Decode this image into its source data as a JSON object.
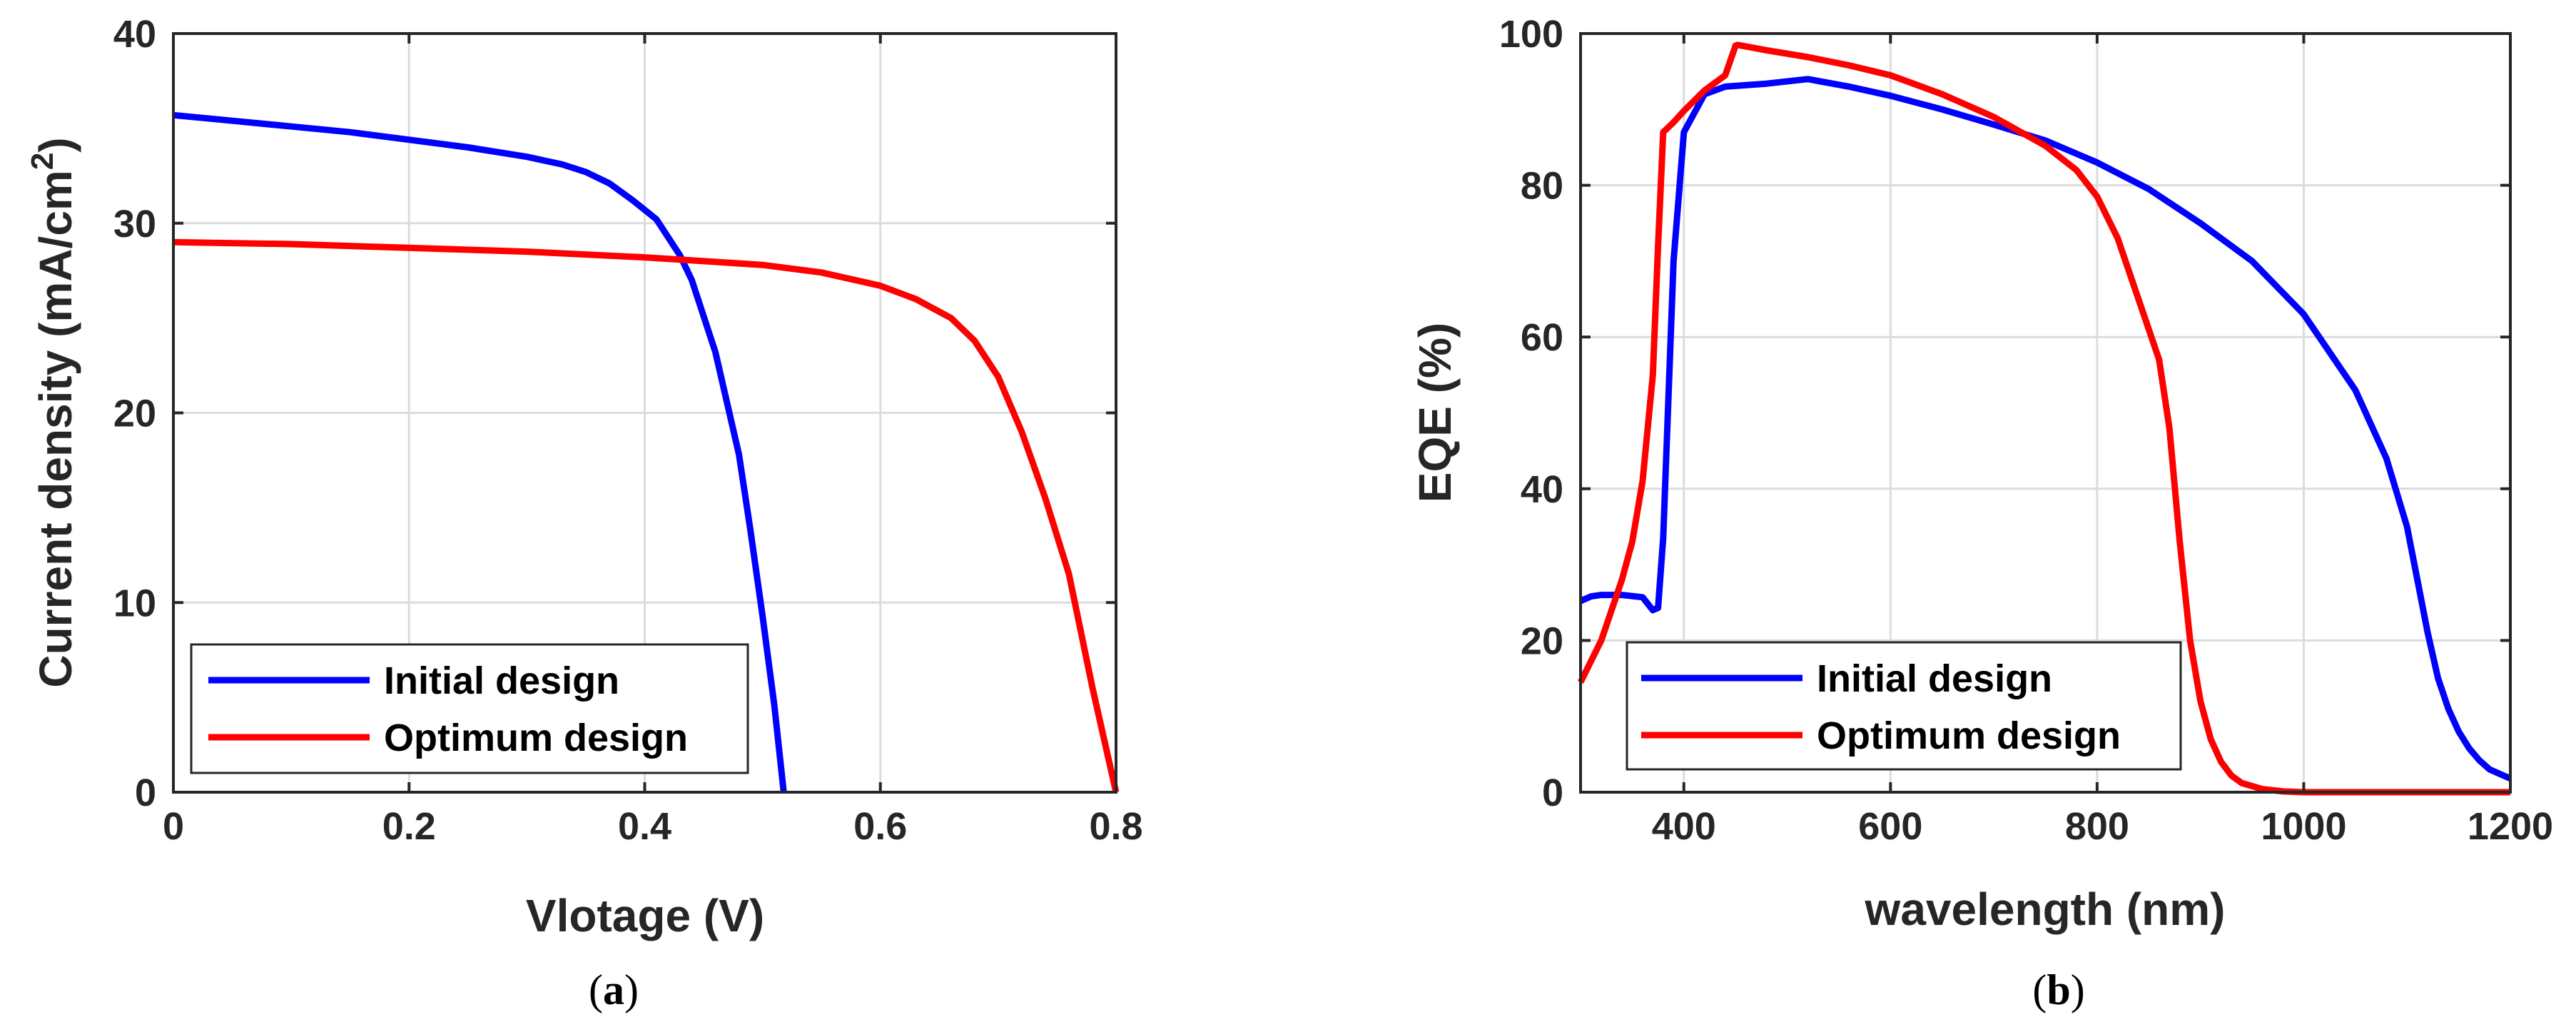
{
  "chart_data": [
    {
      "type": "line",
      "caption": "a",
      "xlabel": "Vlotage (V)",
      "ylabel": "Current density (mA/cm",
      "ylabel_sup": "2",
      "ylabel_close": ")",
      "xlim": [
        0,
        0.8
      ],
      "ylim": [
        0,
        40
      ],
      "xticks": [
        "0",
        "0.2",
        "0.4",
        "0.6",
        "0.8"
      ],
      "yticks": [
        "0",
        "10",
        "20",
        "30",
        "40"
      ],
      "grid": true,
      "legend_position": "bottom-left",
      "series": [
        {
          "name": "Initial design",
          "color": "#0000ff",
          "x": [
            0,
            0.05,
            0.1,
            0.15,
            0.2,
            0.25,
            0.3,
            0.33,
            0.35,
            0.37,
            0.39,
            0.41,
            0.43,
            0.44,
            0.46,
            0.48,
            0.49,
            0.5,
            0.51,
            0.518
          ],
          "y": [
            35.7,
            35.4,
            35.1,
            34.8,
            34.4,
            34.0,
            33.5,
            33.1,
            32.7,
            32.1,
            31.2,
            30.2,
            28.3,
            27.0,
            23.2,
            17.8,
            13.7,
            9.3,
            4.6,
            0
          ]
        },
        {
          "name": "Optimum design",
          "color": "#ff0000",
          "x": [
            0,
            0.1,
            0.2,
            0.3,
            0.4,
            0.45,
            0.5,
            0.55,
            0.6,
            0.63,
            0.66,
            0.68,
            0.7,
            0.72,
            0.74,
            0.76,
            0.78,
            0.8
          ],
          "y": [
            29.0,
            28.9,
            28.7,
            28.5,
            28.2,
            28.0,
            27.8,
            27.4,
            26.7,
            26.0,
            25.0,
            23.8,
            21.9,
            19.0,
            15.5,
            11.5,
            5.5,
            0
          ]
        }
      ]
    },
    {
      "type": "line",
      "caption": "b",
      "xlabel": "wavelength (nm)",
      "ylabel": "EQE (%)",
      "xlim": [
        300,
        1200
      ],
      "ylim": [
        0,
        100
      ],
      "xticks": [
        "400",
        "600",
        "800",
        "1000",
        "1200"
      ],
      "yticks": [
        "0",
        "20",
        "40",
        "60",
        "80",
        "100"
      ],
      "grid": true,
      "legend_position": "bottom-left",
      "series": [
        {
          "name": "Initial design",
          "color": "#0000ff",
          "x": [
            300,
            310,
            320,
            340,
            360,
            370,
            375,
            380,
            390,
            400,
            420,
            440,
            480,
            520,
            560,
            600,
            650,
            700,
            750,
            800,
            850,
            900,
            950,
            1000,
            1050,
            1080,
            1100,
            1110,
            1120,
            1130,
            1140,
            1150,
            1160,
            1170,
            1180,
            1200
          ],
          "y": [
            25.2,
            25.8,
            26.0,
            26.0,
            25.7,
            24.0,
            24.3,
            33.5,
            70.0,
            87.0,
            92.0,
            93.0,
            93.4,
            94.0,
            93.0,
            91.8,
            90.0,
            88.0,
            85.9,
            83.0,
            79.5,
            75.0,
            70.0,
            63.0,
            53.0,
            44.0,
            35.0,
            28.0,
            21.0,
            15.0,
            11.0,
            8.0,
            5.8,
            4.2,
            3.0,
            1.8
          ]
        },
        {
          "name": "Optimum design",
          "color": "#ff0000",
          "x": [
            300,
            320,
            340,
            350,
            360,
            370,
            375,
            380,
            390,
            400,
            420,
            440,
            450,
            452,
            480,
            520,
            560,
            600,
            650,
            700,
            750,
            780,
            800,
            820,
            840,
            860,
            870,
            880,
            890,
            900,
            910,
            920,
            930,
            940,
            960,
            980,
            1000,
            1050,
            1100,
            1150,
            1200
          ],
          "y": [
            14.5,
            20.0,
            28.0,
            33.0,
            41.0,
            55.0,
            72.0,
            87.0,
            88.3,
            89.8,
            92.5,
            94.5,
            98.4,
            98.5,
            97.8,
            96.9,
            95.8,
            94.5,
            92.0,
            89.0,
            85.2,
            82.0,
            78.5,
            73.0,
            65.0,
            57.0,
            48.0,
            33.0,
            20.0,
            12.0,
            7.0,
            4.0,
            2.2,
            1.2,
            0.4,
            0.1,
            0,
            0,
            0,
            0,
            0
          ]
        }
      ]
    }
  ]
}
